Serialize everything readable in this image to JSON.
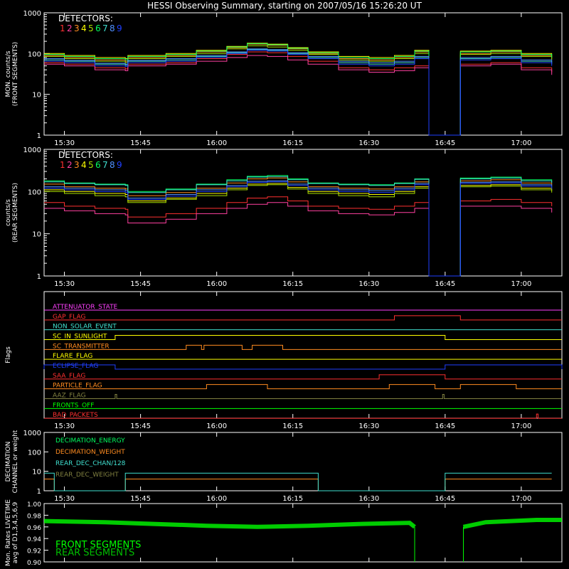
{
  "title": "HESSI Observing Summary, starting on 2007/05/16 15:26:20 UT",
  "colors": {
    "background": "#000000",
    "axes": "#ffffff",
    "detectors": [
      "#ff3030",
      "#ff40a0",
      "#ff8c20",
      "#ffff00",
      "#a8e000",
      "#00ff60",
      "#40e0d0",
      "#5090ff",
      "#2040ff"
    ]
  },
  "time_ticks": [
    "15:30",
    "15:45",
    "16:00",
    "16:15",
    "16:30",
    "16:45",
    "17:00"
  ],
  "chart_data": [
    {
      "type": "line",
      "ylabel": "MON. counts/s",
      "ylabel2": "(FRONT SEGMENTS)",
      "yscale": "log",
      "ylim": [
        1,
        1000
      ],
      "yticks": [
        "1",
        "10",
        "100",
        "1000"
      ],
      "legend_title": "DETECTORS:",
      "legend_numbers": [
        "1",
        "2",
        "3",
        "4",
        "5",
        "6",
        "7",
        "8",
        "9"
      ],
      "x_minutes": [
        -2,
        2,
        8,
        14,
        14.5,
        22,
        28,
        34,
        38,
        42,
        46,
        50,
        56,
        62,
        67,
        71,
        71.2,
        73.8,
        74,
        80,
        86,
        92,
        98
      ],
      "time_axis_start_min": -2,
      "time_axis_end_min": 100,
      "gap": [
        71.2,
        80.6
      ],
      "series": [
        {
          "values": [
            60,
            55,
            45,
            42,
            55,
            60,
            75,
            95,
            110,
            105,
            85,
            65,
            45,
            40,
            45,
            50,
            50,
            1,
            1,
            55,
            60,
            45,
            35
          ]
        },
        {
          "values": [
            55,
            50,
            40,
            38,
            50,
            55,
            65,
            80,
            90,
            85,
            70,
            55,
            40,
            35,
            38,
            45,
            45,
            1,
            1,
            50,
            55,
            40,
            30
          ]
        },
        {
          "values": [
            90,
            80,
            70,
            65,
            80,
            90,
            110,
            140,
            170,
            160,
            130,
            100,
            75,
            70,
            80,
            110,
            110,
            1,
            1,
            100,
            110,
            90,
            75
          ]
        },
        {
          "values": [
            100,
            90,
            80,
            75,
            90,
            100,
            120,
            150,
            180,
            170,
            140,
            110,
            85,
            80,
            90,
            120,
            120,
            1,
            1,
            115,
            120,
            100,
            85
          ]
        },
        {
          "values": [
            85,
            75,
            65,
            60,
            75,
            85,
            100,
            130,
            155,
            145,
            120,
            95,
            70,
            65,
            75,
            100,
            100,
            1,
            1,
            95,
            100,
            85,
            70
          ]
        },
        {
          "values": [
            95,
            85,
            75,
            70,
            85,
            95,
            115,
            145,
            175,
            165,
            135,
            105,
            80,
            75,
            85,
            115,
            115,
            1,
            1,
            110,
            115,
            95,
            80
          ]
        },
        {
          "values": [
            70,
            65,
            55,
            52,
            65,
            70,
            85,
            105,
            125,
            120,
            100,
            80,
            60,
            55,
            60,
            80,
            80,
            1,
            1,
            75,
            80,
            65,
            55
          ]
        },
        {
          "values": [
            75,
            68,
            58,
            55,
            68,
            75,
            90,
            110,
            130,
            125,
            105,
            85,
            65,
            60,
            65,
            85,
            85,
            1,
            1,
            80,
            85,
            70,
            60
          ]
        },
        {
          "values": [
            65,
            60,
            50,
            48,
            60,
            65,
            80,
            100,
            120,
            115,
            95,
            75,
            55,
            50,
            55,
            75,
            75,
            1,
            1,
            70,
            75,
            60,
            50
          ]
        }
      ]
    },
    {
      "type": "line",
      "ylabel": "counts/s",
      "ylabel2": "(REAR SEGMENTS)",
      "yscale": "log",
      "ylim": [
        1,
        1000
      ],
      "yticks": [
        "1",
        "10",
        "100",
        "1000"
      ],
      "legend_title": "DETECTORS:",
      "legend_numbers": [
        "1",
        "2",
        "3",
        "4",
        "5",
        "6",
        "7",
        "8",
        "9"
      ],
      "x_minutes": [
        -2,
        2,
        8,
        14,
        14.5,
        22,
        28,
        34,
        38,
        42,
        46,
        50,
        56,
        62,
        67,
        71,
        71.2,
        73.8,
        74,
        80,
        86,
        92,
        98
      ],
      "series": [
        {
          "values": [
            55,
            45,
            40,
            38,
            25,
            30,
            40,
            55,
            70,
            75,
            60,
            45,
            40,
            38,
            45,
            55,
            55,
            1,
            1,
            60,
            65,
            55,
            45
          ]
        },
        {
          "values": [
            40,
            35,
            30,
            28,
            18,
            22,
            30,
            40,
            50,
            55,
            45,
            35,
            30,
            28,
            32,
            40,
            40,
            1,
            1,
            45,
            45,
            40,
            32
          ]
        },
        {
          "values": [
            150,
            130,
            120,
            115,
            80,
            95,
            120,
            160,
            200,
            210,
            170,
            130,
            120,
            115,
            130,
            170,
            170,
            1,
            1,
            180,
            190,
            160,
            140
          ]
        },
        {
          "values": [
            110,
            100,
            90,
            85,
            60,
            70,
            90,
            120,
            150,
            155,
            125,
            100,
            90,
            85,
            100,
            130,
            130,
            1,
            1,
            140,
            145,
            120,
            105
          ]
        },
        {
          "values": [
            100,
            90,
            80,
            75,
            55,
            65,
            80,
            110,
            140,
            145,
            115,
            90,
            80,
            75,
            90,
            120,
            120,
            1,
            1,
            130,
            135,
            110,
            95
          ]
        },
        {
          "values": [
            180,
            160,
            150,
            145,
            100,
            115,
            150,
            190,
            230,
            240,
            200,
            160,
            150,
            145,
            160,
            200,
            200,
            1,
            1,
            210,
            220,
            190,
            170
          ]
        },
        {
          "values": [
            170,
            155,
            145,
            140,
            95,
            110,
            145,
            180,
            220,
            225,
            190,
            155,
            145,
            140,
            155,
            195,
            195,
            1,
            1,
            200,
            210,
            180,
            160
          ]
        },
        {
          "values": [
            130,
            120,
            110,
            105,
            70,
            85,
            110,
            140,
            175,
            180,
            150,
            120,
            110,
            105,
            120,
            155,
            155,
            1,
            1,
            165,
            170,
            145,
            125
          ]
        },
        {
          "values": [
            120,
            110,
            100,
            95,
            65,
            78,
            100,
            130,
            165,
            170,
            140,
            110,
            100,
            95,
            110,
            145,
            145,
            1,
            1,
            155,
            160,
            135,
            115
          ]
        }
      ]
    },
    {
      "type": "line",
      "ylabel": "Flags",
      "flags": [
        {
          "name": "ATTENUATOR_STATE",
          "color": "#ff40ff",
          "segments": []
        },
        {
          "name": "GAP_FLAG",
          "color": "#ff3030",
          "segments": [
            [
              67,
              80
            ]
          ]
        },
        {
          "name": "NON_SOLAR_EVENT",
          "color": "#40e0d0",
          "segments": []
        },
        {
          "name": "SC_IN_SUNLIGHT",
          "color": "#ffff00",
          "segments": [
            [
              12,
              77
            ]
          ]
        },
        {
          "name": "SC_TRANSMITTER",
          "color": "#ff8c20",
          "segments": [
            [
              26,
              29
            ],
            [
              29.5,
              37
            ],
            [
              39,
              45
            ]
          ]
        },
        {
          "name": "FLARE_FLAG",
          "color": "#ffff00",
          "segments": []
        },
        {
          "name": "ECLIPSE_FLAG",
          "color": "#2040ff",
          "segments": [
            [
              -2,
              12
            ],
            [
              77,
              100
            ]
          ]
        },
        {
          "name": "SAA_FLAG",
          "color": "#ff3030",
          "segments": [
            [
              64,
              77
            ]
          ]
        },
        {
          "name": "PARTICLE_FLAG",
          "color": "#ff8c20",
          "segments": [
            [
              30,
              42
            ],
            [
              66,
              75
            ],
            [
              80,
              91
            ]
          ]
        },
        {
          "name": "AAZ_FLAG",
          "color": "#808040",
          "segments": [
            [
              12,
              12.3
            ],
            [
              76.5,
              76.8
            ]
          ]
        },
        {
          "name": "FRONTS_OFF",
          "color": "#00ff00",
          "segments": []
        },
        {
          "name": "BAD_PACKETS",
          "color": "#ff3030",
          "segments": [
            [
              95,
              95.3
            ]
          ]
        }
      ]
    },
    {
      "type": "line",
      "ylabel": "DECIMATION",
      "ylabel2": "CHANNEL or weight",
      "yscale": "log",
      "ylim": [
        1,
        1000
      ],
      "yticks": [
        "1",
        "10",
        "100",
        "1000"
      ],
      "series": [
        {
          "name": "DECIMATION_ENERGY",
          "color": "#00ff60",
          "steps": []
        },
        {
          "name": "DECIMATION_WEIGHT",
          "color": "#ff8c20",
          "steps": [
            [
              -2,
              0,
              4
            ],
            [
              0,
              14,
              1
            ],
            [
              14,
              52,
              4
            ],
            [
              52,
              77,
              1
            ],
            [
              77,
              98,
              4
            ]
          ]
        },
        {
          "name": "REAR_DEC_CHAN/128",
          "color": "#40e0d0",
          "steps": [
            [
              -2,
              0,
              8
            ],
            [
              0,
              14,
              1
            ],
            [
              14,
              52,
              8
            ],
            [
              52,
              77,
              1
            ],
            [
              77,
              98,
              8
            ]
          ]
        },
        {
          "name": "REAR_DEC_WEIGHT",
          "color": "#808040",
          "steps": []
        }
      ]
    },
    {
      "type": "line",
      "ylabel": "Mon. Rates LIVETIME",
      "ylabel2": "avg of D1,3,4,5,6,9",
      "ylim": [
        0.9,
        1.0
      ],
      "yticks": [
        "0.90",
        "0.92",
        "0.94",
        "0.96",
        "0.98",
        "1.00"
      ],
      "series": [
        {
          "name": "FRONT SEGMENTS",
          "color": "#00ff00"
        },
        {
          "name": "REAR SEGMENTS",
          "color": "#00c000"
        }
      ],
      "x_minutes": [
        -2,
        10,
        20,
        30,
        40,
        50,
        60,
        70,
        71
      ],
      "values": [
        0.97,
        0.968,
        0.965,
        0.962,
        0.96,
        0.962,
        0.965,
        0.967,
        0.96
      ],
      "x2_minutes": [
        80.6,
        85,
        90,
        95,
        100
      ],
      "values2": [
        0.96,
        0.968,
        0.97,
        0.972,
        0.972
      ]
    }
  ]
}
